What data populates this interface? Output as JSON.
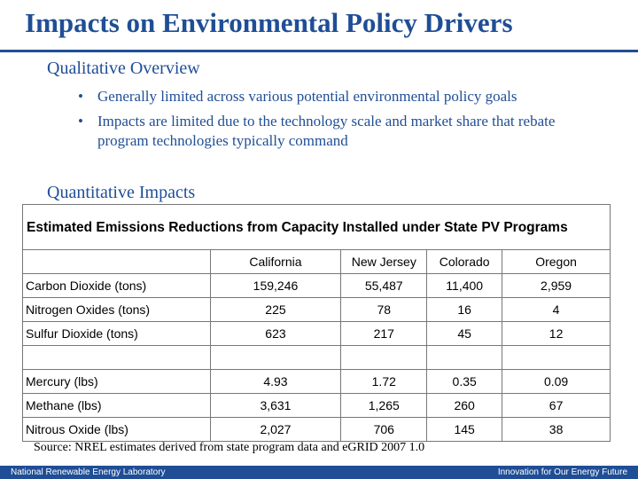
{
  "slide": {
    "title": "Impacts on Environmental Policy Drivers",
    "qualitative_heading": "Qualitative Overview",
    "bullets": [
      "Generally limited across various potential environmental policy goals",
      "Impacts are limited due to the technology scale and market share that rebate program technologies typically command"
    ],
    "quantitative_heading": "Quantitative Impacts",
    "bullet_glyph": "•"
  },
  "table": {
    "caption": "Estimated Emissions Reductions from Capacity Installed under State PV Programs",
    "columns": [
      "",
      "California",
      "New Jersey",
      "Colorado",
      "Oregon"
    ],
    "rows": [
      [
        "Carbon Dioxide (tons)",
        "159,246",
        "55,487",
        "11,400",
        "2,959"
      ],
      [
        "Nitrogen Oxides (tons)",
        "225",
        "78",
        "16",
        "4"
      ],
      [
        "Sulfur Dioxide (tons)",
        "623",
        "217",
        "45",
        "12"
      ],
      [
        "",
        "",
        "",
        "",
        ""
      ],
      [
        "Mercury (lbs)",
        "4.93",
        "1.72",
        "0.35",
        "0.09"
      ],
      [
        "Methane (lbs)",
        "3,631",
        "1,265",
        "260",
        "67"
      ],
      [
        "Nitrous Oxide (lbs)",
        "2,027",
        "706",
        "145",
        "38"
      ]
    ]
  },
  "source": "Source: NREL estimates derived from state program data and eGRID 2007 1.0",
  "footer": {
    "left": "National Renewable Energy Laboratory",
    "right": "Innovation for Our Energy Future"
  },
  "colors": {
    "brand_blue": "#1f4e96",
    "background": "#ffffff"
  }
}
